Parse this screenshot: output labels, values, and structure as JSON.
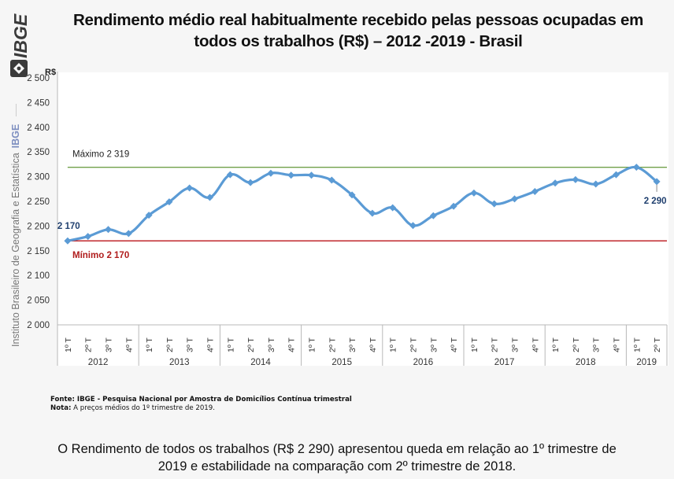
{
  "header": {
    "title_line1": "Rendimento médio real habitualmente recebido pelas pessoas ocupadas em",
    "title_line2": "todos os trabalhos (R$) – 2012 -2019 - Brasil",
    "logo_text": "IBGE",
    "side_text": "Instituto Brasileiro de Geografia e Estatística",
    "side_brand": "IBGE"
  },
  "colors": {
    "series": "#5b9bd5",
    "max_line": "#70a04a",
    "min_line": "#c0272d",
    "min_label": "#b01c1c",
    "data_label": "#1f3f6e",
    "axis": "#b8b8b8"
  },
  "chart_data": {
    "type": "line",
    "title": "Rendimento médio real habitualmente recebido pelas pessoas ocupadas em todos os trabalhos (R$) – 2012 -2019 - Brasil",
    "ylabel": "R$",
    "xlabel": "",
    "ylim": [
      2000,
      2500
    ],
    "yticks": [
      2000,
      2050,
      2100,
      2150,
      2200,
      2250,
      2300,
      2350,
      2400,
      2450,
      2500
    ],
    "ytick_labels": [
      "2 000",
      "2 050",
      "2 100",
      "2 150",
      "2 200",
      "2 250",
      "2 300",
      "2 350",
      "2 400",
      "2 450",
      "2 500"
    ],
    "grid": false,
    "quarters": [
      "1º T",
      "2º T",
      "3º T",
      "4º T",
      "1º T",
      "2º T",
      "3º T",
      "4º T",
      "1º T",
      "2º T",
      "3º T",
      "4º T",
      "1º T",
      "2º T",
      "3º T",
      "4º T",
      "1º T",
      "2º T",
      "3º T",
      "4º T",
      "1º T",
      "2º T",
      "3º T",
      "4º T",
      "1º T",
      "2º T",
      "3º T",
      "4º T",
      "1º T",
      "2º T"
    ],
    "years": [
      {
        "label": "2012",
        "count": 4
      },
      {
        "label": "2013",
        "count": 4
      },
      {
        "label": "2014",
        "count": 4
      },
      {
        "label": "2015",
        "count": 4
      },
      {
        "label": "2016",
        "count": 4
      },
      {
        "label": "2017",
        "count": 4
      },
      {
        "label": "2018",
        "count": 4
      },
      {
        "label": "2019",
        "count": 2
      }
    ],
    "series": [
      {
        "name": "Rendimento médio real",
        "values": [
          2170,
          2179,
          2193,
          2185,
          2222,
          2249,
          2277,
          2258,
          2304,
          2288,
          2307,
          2303,
          2303,
          2293,
          2263,
          2226,
          2237,
          2201,
          2221,
          2240,
          2267,
          2245,
          2255,
          2270,
          2287,
          2294,
          2285,
          2304,
          2319,
          2290
        ]
      }
    ],
    "reference_lines": [
      {
        "name": "Máximo",
        "value": 2319,
        "label": "Máximo 2 319"
      },
      {
        "name": "Mínimo",
        "value": 2170,
        "label": "Mínimo 2 170"
      }
    ],
    "data_labels": [
      {
        "index": 0,
        "text": "2 170"
      },
      {
        "index": 29,
        "text": "2 290"
      }
    ]
  },
  "footer": {
    "source_label": "Fonte:",
    "source_text": " IBGE - Pesquisa Nacional por Amostra de Domicílios Contínua trimestral",
    "note_label": "Nota:",
    "note_text": " A preços médios do 1º trimestre de 2019.",
    "summary_line1": "O Rendimento de todos os trabalhos (R$ 2 290) apresentou queda em relação ao 1º trimestre de",
    "summary_line2": "2019 e estabilidade na comparação com 2º trimestre de 2018."
  }
}
